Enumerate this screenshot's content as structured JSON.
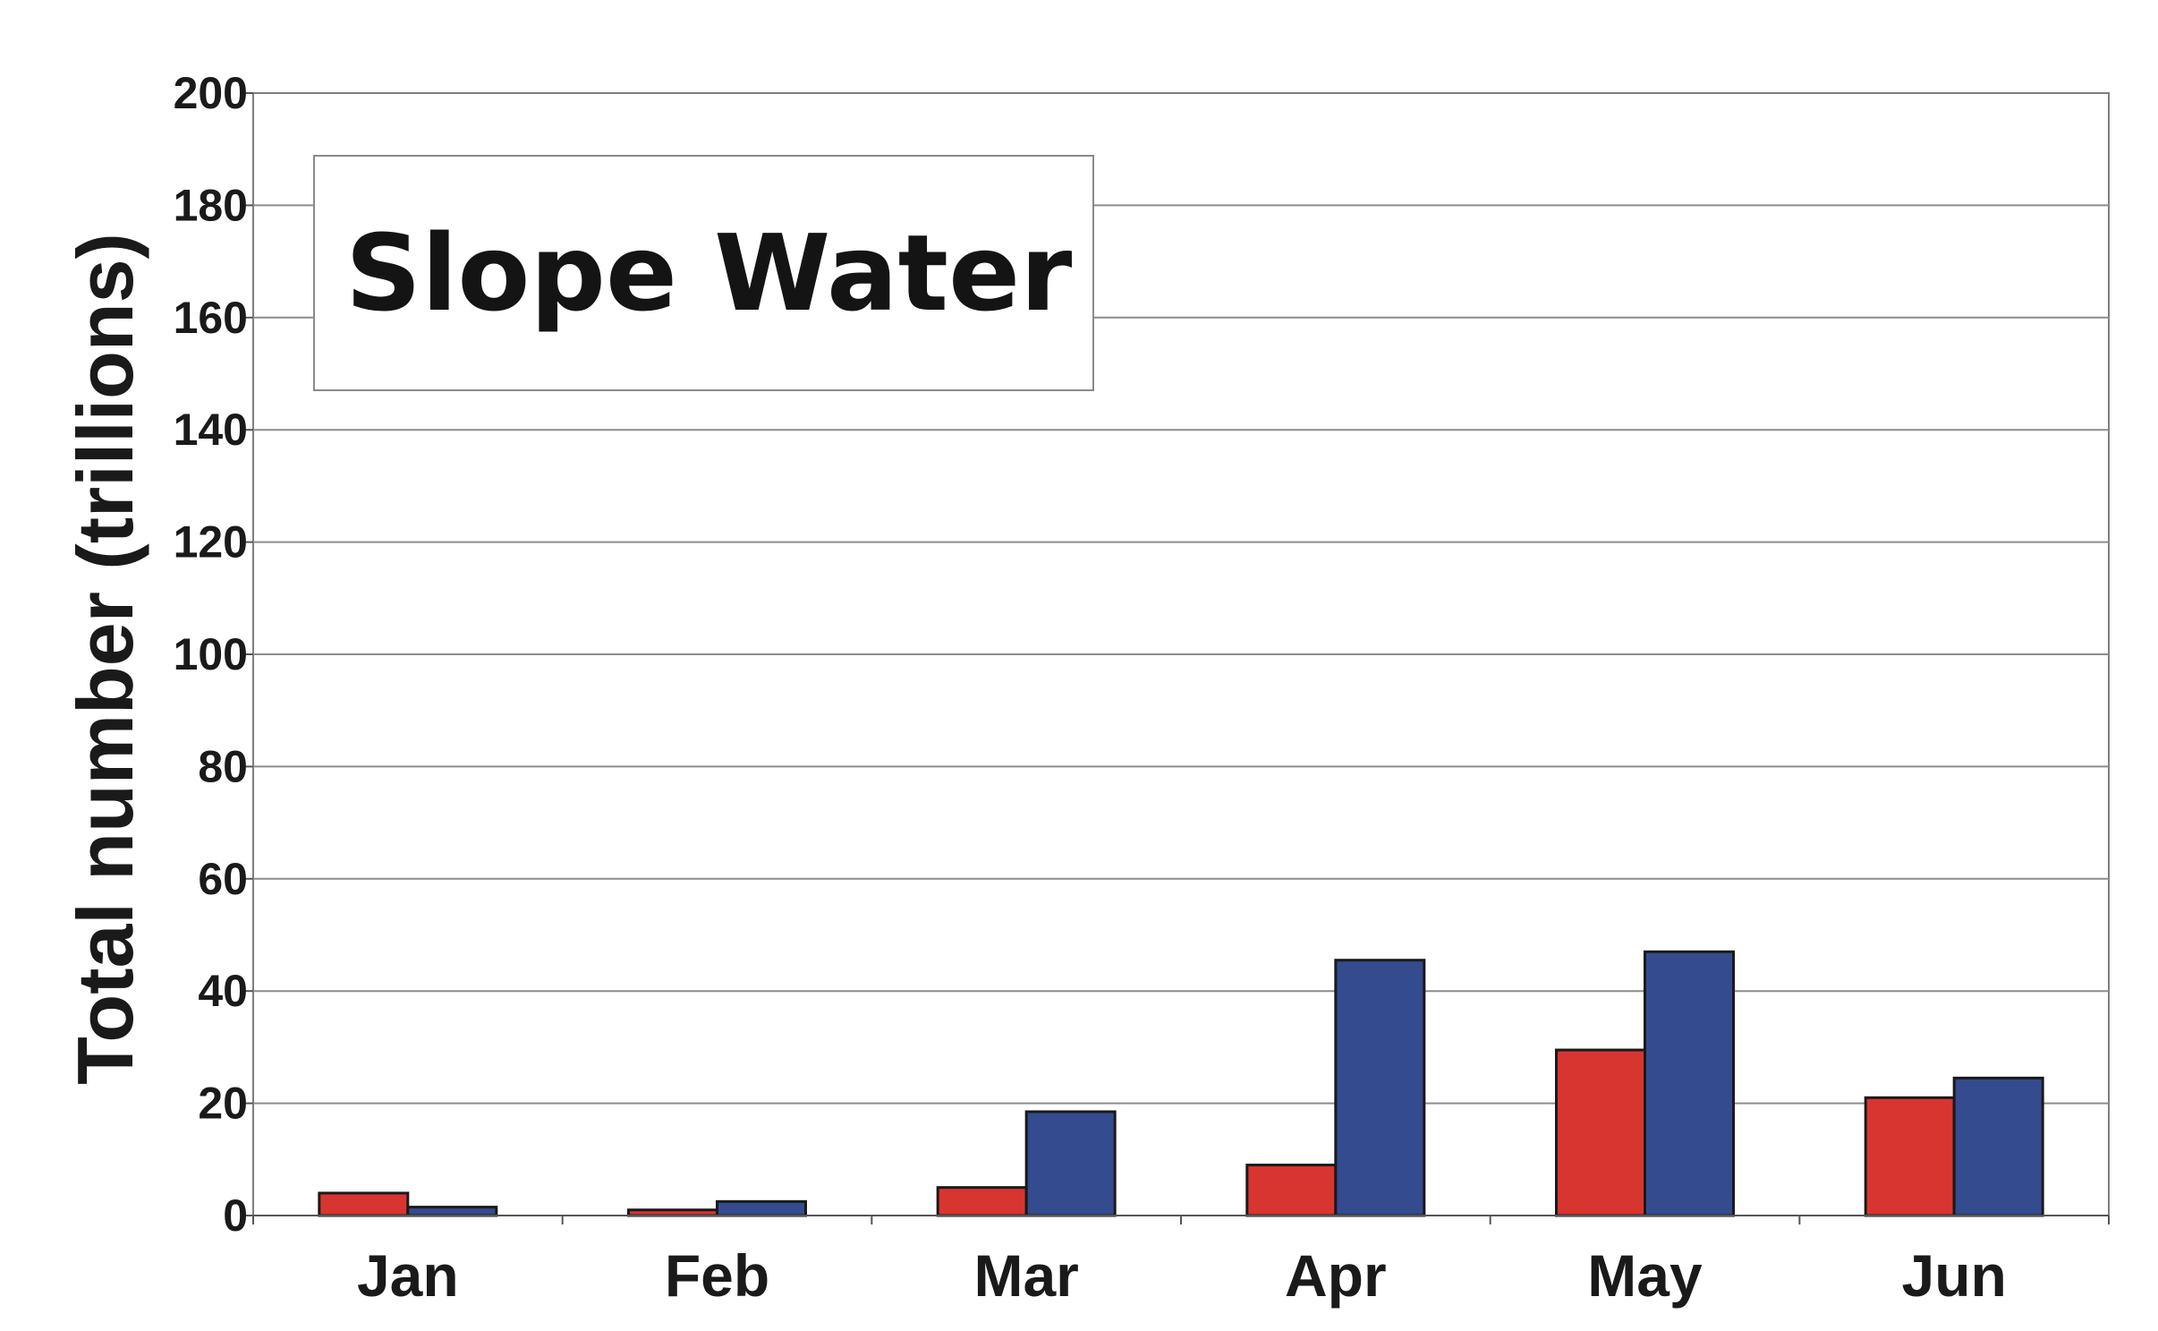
{
  "chart_data": {
    "type": "bar",
    "title": "Slope Water",
    "xlabel": "",
    "ylabel": "Total number (trillions)",
    "ylim": [
      0,
      200
    ],
    "yticks": [
      0,
      20,
      40,
      60,
      80,
      100,
      120,
      140,
      160,
      180,
      200
    ],
    "categories": [
      "Jan",
      "Feb",
      "Mar",
      "Apr",
      "May",
      "Jun"
    ],
    "series": [
      {
        "color": "#d93530",
        "values": [
          4,
          1,
          5,
          9,
          29.5,
          21
        ]
      },
      {
        "color": "#344b8f",
        "values": [
          1.5,
          2.5,
          18.5,
          45.5,
          47,
          24.5
        ]
      }
    ],
    "grid": true,
    "legend": "none"
  }
}
